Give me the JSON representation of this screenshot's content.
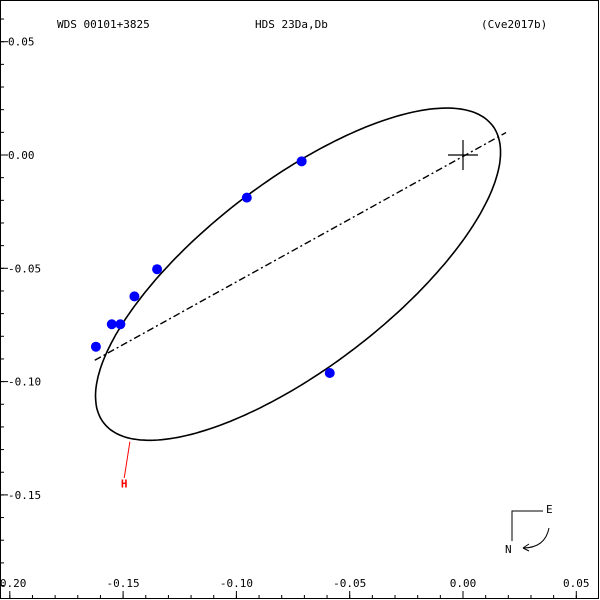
{
  "header": {
    "left": "WDS 00101+3825",
    "center": "HDS  23Da,Db",
    "right": "(Cve2017b)"
  },
  "compass": {
    "east": "E",
    "north": "N"
  },
  "chart_data": {
    "type": "scatter",
    "xlim": [
      0.05,
      -0.2
    ],
    "ylim": [
      -0.2,
      0.06
    ],
    "x_ticks": [
      {
        "value": -0.2,
        "label": "-0.20"
      },
      {
        "value": -0.15,
        "label": "-0.15"
      },
      {
        "value": -0.1,
        "label": "-0.10"
      },
      {
        "value": -0.05,
        "label": "-0.05"
      },
      {
        "value": 0.0,
        "label": "0.00"
      },
      {
        "value": 0.05,
        "label": "0.05"
      }
    ],
    "y_ticks": [
      {
        "value": 0.05,
        "label": "0.05"
      },
      {
        "value": 0.0,
        "label": "0.00"
      },
      {
        "value": -0.05,
        "label": "-0.05"
      },
      {
        "value": -0.1,
        "label": "-0.10"
      },
      {
        "value": -0.15,
        "label": "-0.15"
      }
    ],
    "primary": {
      "x": 0.0,
      "y": 0.0
    },
    "orbit_ellipse": {
      "center": [
        -0.0728,
        -0.0526
      ],
      "semi_major": 0.108,
      "semi_minor": 0.0412,
      "angle_deg": 37.4
    },
    "line_of_nodes": [
      [
        -0.1625,
        -0.0906
      ],
      [
        0.019,
        0.0099
      ]
    ],
    "observations": [
      {
        "x": -0.0712,
        "y": -0.0028,
        "label": ""
      },
      {
        "x": -0.0954,
        "y": -0.0188,
        "label": ""
      },
      {
        "x": -0.135,
        "y": -0.0504,
        "label": ""
      },
      {
        "x": -0.145,
        "y": -0.0624,
        "label": ""
      },
      {
        "x": -0.1512,
        "y": -0.0747,
        "label": ""
      },
      {
        "x": -0.155,
        "y": -0.0747,
        "label": ""
      },
      {
        "x": -0.162,
        "y": -0.0846,
        "label": ""
      },
      {
        "x": -0.0588,
        "y": -0.0962,
        "label": ""
      }
    ],
    "measurement_lines": [
      {
        "from": [
          -0.147,
          -0.1265
        ],
        "to": [
          -0.1495,
          -0.1425
        ],
        "color": "#ff0000"
      }
    ],
    "annotations": [
      {
        "text": "H",
        "x": -0.1495,
        "y": -0.1445,
        "color": "#ff0000"
      }
    ],
    "point_color": "#0000ff",
    "orbit_color": "#000000",
    "grid": false
  }
}
